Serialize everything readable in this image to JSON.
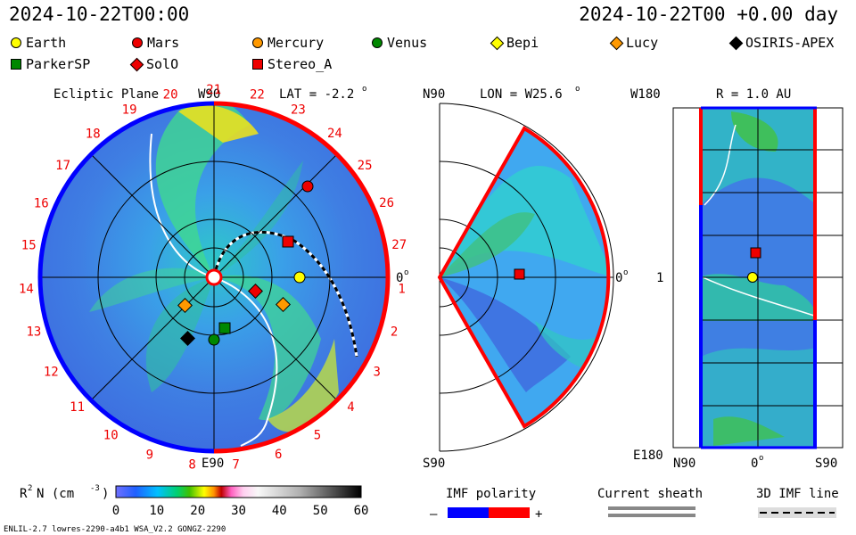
{
  "header": {
    "left": "2024-10-22T00:00",
    "right": "2024-10-22T00 +0.00 day"
  },
  "legend": [
    {
      "name": "Earth",
      "shape": "circle",
      "color": "#ffff00"
    },
    {
      "name": "Mars",
      "shape": "circle",
      "color": "#e00000"
    },
    {
      "name": "Mercury",
      "shape": "circle",
      "color": "#ff9900"
    },
    {
      "name": "Venus",
      "shape": "circle",
      "color": "#008000"
    },
    {
      "name": "Bepi",
      "shape": "diamond",
      "color": "#ffff00"
    },
    {
      "name": "Lucy",
      "shape": "diamond",
      "color": "#ff9900"
    },
    {
      "name": "OSIRIS-APEX",
      "shape": "diamond",
      "color": "#000000"
    },
    {
      "name": "ParkerSP",
      "shape": "square",
      "color": "#008000"
    },
    {
      "name": "SolO",
      "shape": "diamond",
      "color": "#e00000"
    },
    {
      "name": "Stereo_A",
      "shape": "square",
      "color": "#e00000"
    }
  ],
  "ecliptic": {
    "title": "Ecliptic Plane",
    "top_label": "W90",
    "bottom_label": "E90",
    "right_label": "0",
    "lat_label": "LAT = -2.2",
    "degree_symbol": "o",
    "carrington": [
      "1",
      "2",
      "3",
      "4",
      "5",
      "6",
      "7",
      "8",
      "9",
      "10",
      "11",
      "12",
      "13",
      "14",
      "15",
      "16",
      "17",
      "18",
      "19",
      "20",
      "21",
      "22",
      "23",
      "24",
      "25",
      "26",
      "27"
    ]
  },
  "meridional": {
    "top_left": "N90",
    "bottom_left": "S90",
    "lon_label": "LON = W25.6",
    "right_label": "0",
    "degree_symbol": "o"
  },
  "latlon": {
    "top_left": "W180",
    "bottom_left": "E180",
    "mid_left": "1",
    "radius_label": "R = 1.0 AU",
    "x_left": "N90",
    "x_mid": "0",
    "x_right": "S90",
    "degree_symbol": "o"
  },
  "colorbar": {
    "label_r": "R",
    "label_sup": "2",
    "label_n": "N (cm",
    "label_exp": "-3",
    "label_close": ")",
    "ticks": [
      "0",
      "10",
      "20",
      "30",
      "40",
      "50",
      "60"
    ]
  },
  "imf_polarity": {
    "title": "IMF polarity",
    "minus": "–",
    "plus": "+",
    "neg_color": "#0000ff",
    "pos_color": "#ff0000"
  },
  "current_sheath": {
    "title": "Current sheath"
  },
  "imf_line": {
    "title": "3D IMF line"
  },
  "footer": {
    "text": "ENLIL-2.7 lowres-2290-a4b1 WSA_V2.2 GONGZ-2290"
  }
}
